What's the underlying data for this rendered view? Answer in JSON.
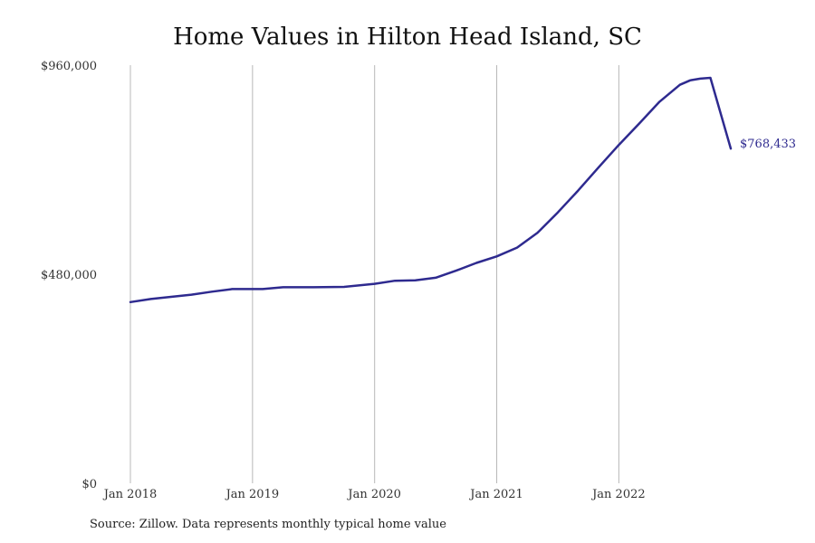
{
  "chart_data": {
    "type": "line",
    "title": "Home Values in Hilton Head Island, SC",
    "source": "Source: Zillow. Data represents monthly typical home value",
    "ylim": [
      0,
      960000
    ],
    "xlim": [
      "2018-01",
      "2022-12"
    ],
    "y_ticks": [
      {
        "value": 0,
        "label": "$0"
      },
      {
        "value": 480000,
        "label": "$480,000"
      },
      {
        "value": 960000,
        "label": "$960,000"
      }
    ],
    "x_ticks": [
      {
        "value": "2018-01",
        "label": "Jan 2018"
      },
      {
        "value": "2019-01",
        "label": "Jan 2019"
      },
      {
        "value": "2020-01",
        "label": "Jan 2020"
      },
      {
        "value": "2021-01",
        "label": "Jan 2021"
      },
      {
        "value": "2022-01",
        "label": "Jan 2022"
      }
    ],
    "grid": "vertical",
    "line_color": "#2e2a8f",
    "end_label": "$768,433",
    "series": [
      {
        "x": [
          "2018-01",
          "2018-03",
          "2018-05",
          "2018-07",
          "2018-09",
          "2018-11",
          "2019-02",
          "2019-04",
          "2019-07",
          "2019-10",
          "2020-01",
          "2020-03",
          "2020-05",
          "2020-07",
          "2020-09",
          "2020-11",
          "2021-01",
          "2021-03",
          "2021-05",
          "2021-07",
          "2021-09",
          "2021-11",
          "2022-01",
          "2022-03",
          "2022-05",
          "2022-07",
          "2022-08",
          "2022-09",
          "2022-10",
          "2022-12"
        ],
        "y": [
          416000,
          423000,
          428000,
          433000,
          440000,
          446000,
          446000,
          450000,
          450000,
          451000,
          458000,
          465000,
          466000,
          472000,
          488000,
          506000,
          521000,
          541000,
          575000,
          622000,
          672000,
          725000,
          777000,
          826000,
          876000,
          915000,
          925000,
          929000,
          931000,
          768433
        ]
      }
    ]
  }
}
